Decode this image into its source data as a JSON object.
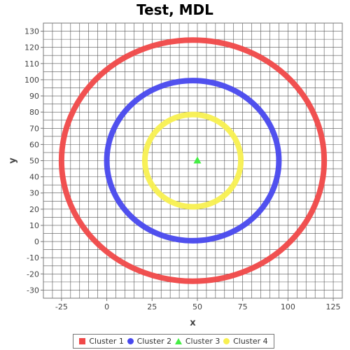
{
  "chart_data": {
    "type": "scatter",
    "title": "Test, MDL",
    "xlabel": "x",
    "ylabel": "y",
    "xlim": [
      -35,
      130
    ],
    "ylim": [
      -35,
      135
    ],
    "x_ticks": [
      -25,
      0,
      25,
      50,
      75,
      100,
      125
    ],
    "y_ticks": [
      -30,
      -20,
      -10,
      0,
      10,
      20,
      30,
      40,
      50,
      60,
      70,
      80,
      90,
      100,
      110,
      120,
      130
    ],
    "grid": true,
    "legend_position": "bottom",
    "series": [
      {
        "name": "Cluster 1",
        "marker": "square",
        "color": "#f04848",
        "shape": "ring",
        "center": [
          47.5,
          50
        ],
        "radius_x": 72.5,
        "radius_y": 74.5
      },
      {
        "name": "Cluster 2",
        "marker": "circle",
        "color": "#4848ee",
        "shape": "ring",
        "center": [
          47.5,
          50
        ],
        "radius_x": 47.5,
        "radius_y": 49.5
      },
      {
        "name": "Cluster 3",
        "marker": "triangle",
        "color": "#44ee44",
        "shape": "point",
        "center": [
          50,
          50
        ]
      },
      {
        "name": "Cluster 4",
        "marker": "circle",
        "color": "#f8f050",
        "shape": "ring",
        "center": [
          47.5,
          50
        ],
        "radius_x": 26.5,
        "radius_y": 28.5
      }
    ]
  }
}
